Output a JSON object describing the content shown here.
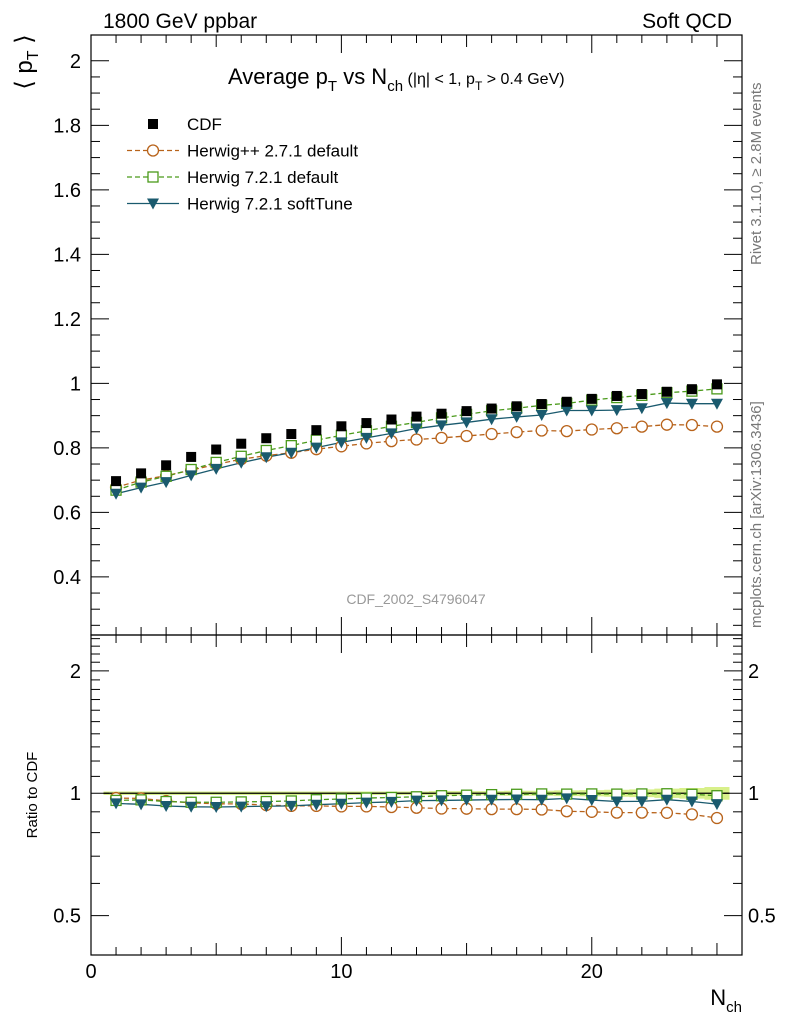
{
  "header": {
    "left": "1800 GeV ppbar",
    "right": "Soft QCD"
  },
  "side_labels": {
    "rivet": "Rivet 3.1.10, ≥ 2.8M events",
    "mcplots": "mcplots.cern.ch [arXiv:1306.3436]"
  },
  "chart_data": [
    {
      "type": "scatter",
      "title": "Average pT vs Nch (|η| < 1, pT > 0.4 GeV)",
      "ylabel": "⟨ pT ⟩",
      "xlabel": "",
      "xlim": [
        0,
        26
      ],
      "ylim": [
        0.22,
        2.08
      ],
      "yticks": [
        "0.4",
        "0.6",
        "0.8",
        "1",
        "1.2",
        "1.4",
        "1.6",
        "1.8",
        "2"
      ],
      "watermark": "CDF_2002_S4796047",
      "legend_position": "top-left",
      "x": [
        1,
        2,
        3,
        4,
        5,
        6,
        7,
        8,
        9,
        10,
        11,
        12,
        13,
        14,
        15,
        16,
        17,
        18,
        19,
        20,
        21,
        22,
        23,
        24,
        25
      ],
      "series": [
        {
          "name": "CDF",
          "color": "#000000",
          "marker": "filled-square",
          "values": [
            0.697,
            0.721,
            0.746,
            0.772,
            0.795,
            0.813,
            0.83,
            0.843,
            0.855,
            0.867,
            0.877,
            0.888,
            0.897,
            0.906,
            0.914,
            0.922,
            0.929,
            0.936,
            0.943,
            0.952,
            0.961,
            0.967,
            0.974,
            0.982,
            0.997
          ]
        },
        {
          "name": "Herwig++ 2.7.1 default",
          "color": "#b8631b",
          "marker": "open-circle",
          "line": "dashed",
          "values": [
            0.678,
            0.7,
            0.714,
            0.731,
            0.749,
            0.765,
            0.776,
            0.785,
            0.796,
            0.805,
            0.814,
            0.821,
            0.826,
            0.831,
            0.837,
            0.843,
            0.849,
            0.854,
            0.852,
            0.857,
            0.861,
            0.866,
            0.872,
            0.871,
            0.866
          ]
        },
        {
          "name": "Herwig 7.2.1 default",
          "color": "#4a9a1a",
          "marker": "open-square",
          "line": "dashed",
          "values": [
            0.669,
            0.694,
            0.712,
            0.733,
            0.755,
            0.774,
            0.792,
            0.807,
            0.824,
            0.839,
            0.853,
            0.867,
            0.879,
            0.893,
            0.904,
            0.915,
            0.923,
            0.932,
            0.938,
            0.948,
            0.956,
            0.963,
            0.971,
            0.976,
            0.983
          ]
        },
        {
          "name": "Herwig 7.2.1 softTune",
          "color": "#1a5a6e",
          "marker": "filled-triangle-down",
          "line": "solid",
          "values": [
            0.658,
            0.677,
            0.694,
            0.715,
            0.735,
            0.754,
            0.771,
            0.785,
            0.801,
            0.817,
            0.831,
            0.845,
            0.86,
            0.87,
            0.879,
            0.889,
            0.896,
            0.902,
            0.916,
            0.916,
            0.917,
            0.923,
            0.939,
            0.937,
            0.937
          ]
        }
      ]
    },
    {
      "type": "scatter",
      "ylabel": "Ratio to CDF",
      "xlabel": "Nch",
      "xlim": [
        0,
        26
      ],
      "ylim": [
        0.4,
        2.45
      ],
      "ylog": true,
      "yticks": [
        "0.5",
        "1",
        "2"
      ],
      "xticks": [
        "0",
        "10",
        "20"
      ],
      "x": [
        1,
        2,
        3,
        4,
        5,
        6,
        7,
        8,
        9,
        10,
        11,
        12,
        13,
        14,
        15,
        16,
        17,
        18,
        19,
        20,
        21,
        22,
        23,
        24,
        25
      ],
      "series": [
        {
          "name": "Herwig++ 2.7.1 default",
          "color": "#b8631b",
          "values": [
            0.973,
            0.971,
            0.957,
            0.947,
            0.942,
            0.941,
            0.935,
            0.931,
            0.931,
            0.928,
            0.928,
            0.925,
            0.921,
            0.917,
            0.916,
            0.914,
            0.914,
            0.912,
            0.903,
            0.9,
            0.896,
            0.896,
            0.895,
            0.887,
            0.869
          ]
        },
        {
          "name": "Herwig 7.2.1 default",
          "color": "#4a9a1a",
          "values": [
            0.96,
            0.963,
            0.954,
            0.95,
            0.95,
            0.952,
            0.954,
            0.957,
            0.964,
            0.968,
            0.973,
            0.976,
            0.98,
            0.986,
            0.989,
            0.992,
            0.994,
            0.996,
            0.995,
            0.996,
            0.995,
            0.996,
            0.997,
            0.994,
            0.986
          ]
        },
        {
          "name": "Herwig 7.2.1 softTune",
          "color": "#1a5a6e",
          "values": [
            0.944,
            0.939,
            0.93,
            0.926,
            0.925,
            0.927,
            0.929,
            0.931,
            0.937,
            0.942,
            0.948,
            0.952,
            0.959,
            0.96,
            0.962,
            0.964,
            0.965,
            0.964,
            0.971,
            0.962,
            0.954,
            0.955,
            0.964,
            0.954,
            0.94
          ]
        }
      ],
      "band": {
        "color": "#d8f08a",
        "half_width": [
          0.01,
          0.01,
          0.01,
          0.01,
          0.01,
          0.01,
          0.01,
          0.01,
          0.01,
          0.01,
          0.01,
          0.01,
          0.01,
          0.012,
          0.012,
          0.012,
          0.014,
          0.014,
          0.016,
          0.018,
          0.02,
          0.022,
          0.026,
          0.03,
          0.036
        ]
      }
    }
  ]
}
